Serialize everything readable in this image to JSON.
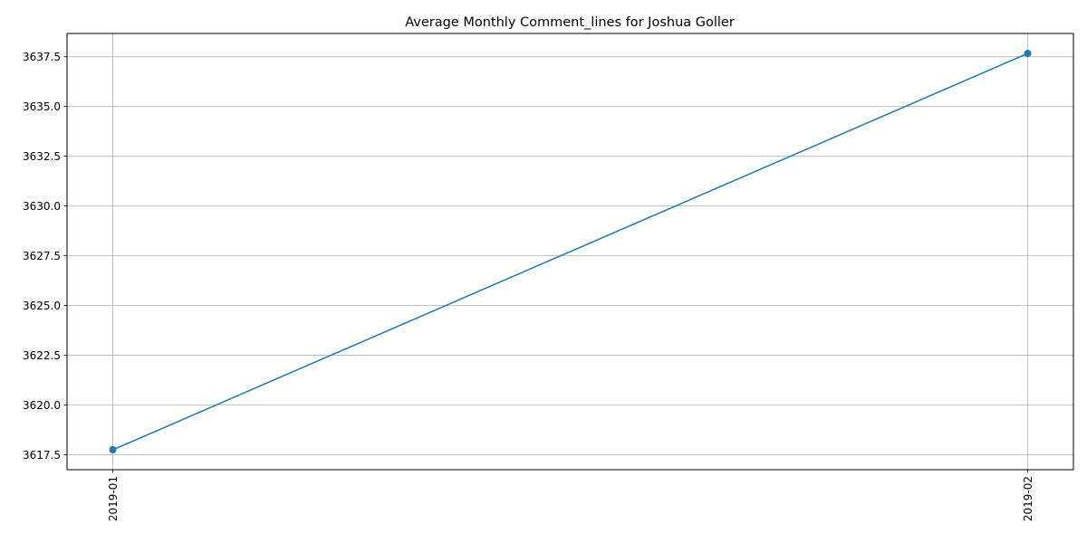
{
  "chart_data": {
    "type": "line",
    "title": "Average Monthly Comment_lines for Joshua Goller",
    "xlabel": "",
    "ylabel": "",
    "categories": [
      "2019-01",
      "2019-02"
    ],
    "series": [
      {
        "values": [
          3617.75,
          3637.667
        ],
        "color": "#1f77b4",
        "marker": "circle"
      }
    ],
    "ylim": [
      3616.75,
      3638.67
    ],
    "yticks": [
      3617.5,
      3620.0,
      3622.5,
      3625.0,
      3627.5,
      3630.0,
      3632.5,
      3635.0,
      3637.5
    ],
    "ytick_labels": [
      "3617.5",
      "3620.0",
      "3622.5",
      "3625.0",
      "3627.5",
      "3630.0",
      "3632.5",
      "3635.0",
      "3637.5"
    ],
    "xtick_rotation": "vertical",
    "grid": true,
    "legend": false
  }
}
